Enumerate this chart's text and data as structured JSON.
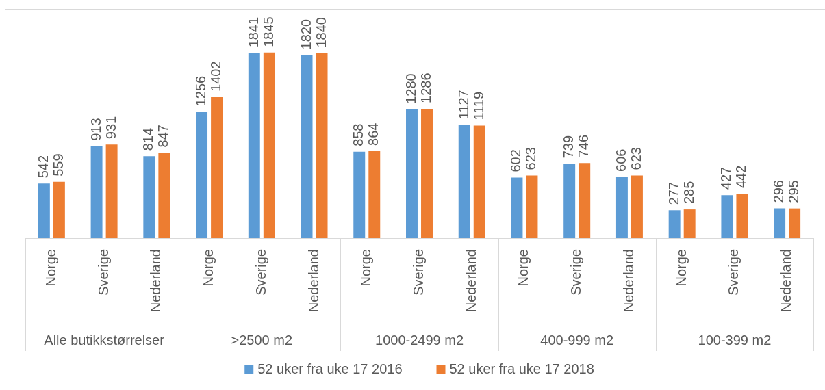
{
  "chart_data": {
    "type": "bar",
    "categories": [
      "Norge",
      "Sverige",
      "Nederland",
      "Norge",
      "Sverige",
      "Nederland",
      "Norge",
      "Sverige",
      "Nederland",
      "Norge",
      "Sverige",
      "Nederland",
      "Norge",
      "Sverige",
      "Nederland"
    ],
    "series": [
      {
        "name": "52 uker fra uke 17 2016",
        "color": "#5b9bd5",
        "values": [
          542,
          913,
          814,
          1256,
          1841,
          1820,
          858,
          1280,
          1127,
          602,
          739,
          606,
          277,
          427,
          296
        ]
      },
      {
        "name": "52 uker fra uke 17 2018",
        "color": "#ed7d31",
        "values": [
          559,
          931,
          847,
          1402,
          1845,
          1840,
          864,
          1286,
          1119,
          623,
          746,
          623,
          285,
          442,
          295
        ]
      }
    ],
    "data_labels": true,
    "legend": "bottom",
    "annotations": [
      "Alle butikkstørrelser",
      ">2500 m2",
      "1000-2499 m2",
      "400-999 m2",
      "100-399 m2"
    ]
  }
}
